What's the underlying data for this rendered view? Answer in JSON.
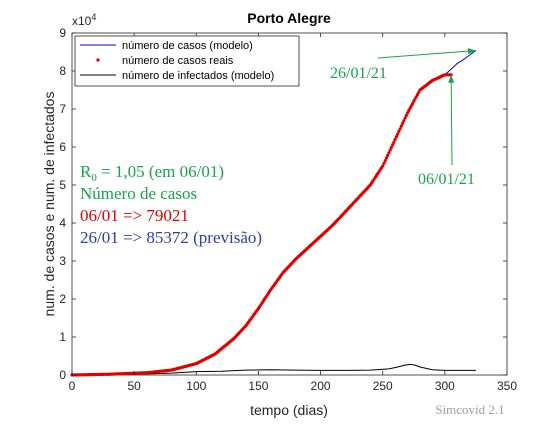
{
  "chart_data": {
    "type": "line",
    "title": "Porto Alegre",
    "xlabel": "tempo (dias)",
    "ylabel": "num. de casos e num. de infectados",
    "xlim": [
      0,
      350
    ],
    "ylim": [
      0,
      9
    ],
    "y_exponent_label": "x10",
    "y_exponent_power": "4",
    "x_ticks": [
      "0",
      "50",
      "100",
      "150",
      "200",
      "250",
      "300",
      "350"
    ],
    "y_ticks": [
      "0",
      "1",
      "2",
      "3",
      "4",
      "5",
      "6",
      "7",
      "8",
      "9"
    ],
    "grid": false,
    "legend_position": "top-left",
    "series": [
      {
        "name": "número de casos (modelo)",
        "color": "#0000cc",
        "style": "line",
        "x": [
          0,
          30,
          60,
          80,
          100,
          115,
          130,
          140,
          150,
          160,
          170,
          180,
          190,
          200,
          210,
          220,
          230,
          240,
          250,
          260,
          270,
          280,
          290,
          300,
          305,
          310,
          315,
          320,
          325
        ],
        "y": [
          0.0,
          0.02,
          0.06,
          0.13,
          0.3,
          0.55,
          0.95,
          1.3,
          1.75,
          2.25,
          2.7,
          3.05,
          3.35,
          3.65,
          3.95,
          4.3,
          4.65,
          5.0,
          5.5,
          6.2,
          6.9,
          7.5,
          7.75,
          7.9,
          8.05,
          8.2,
          8.3,
          8.42,
          8.54
        ]
      },
      {
        "name": "número de casos reais",
        "color": "#e00000",
        "style": "points",
        "x": [
          0,
          30,
          60,
          80,
          100,
          115,
          130,
          140,
          150,
          160,
          170,
          180,
          190,
          200,
          210,
          220,
          230,
          240,
          250,
          260,
          270,
          280,
          290,
          300,
          305
        ],
        "y": [
          0.0,
          0.02,
          0.06,
          0.13,
          0.3,
          0.55,
          0.95,
          1.3,
          1.75,
          2.25,
          2.7,
          3.05,
          3.35,
          3.65,
          3.95,
          4.3,
          4.65,
          5.0,
          5.5,
          6.2,
          6.9,
          7.5,
          7.75,
          7.9,
          7.9
        ]
      },
      {
        "name": "número de infectados (modelo)",
        "color": "#000000",
        "style": "line",
        "x": [
          0,
          50,
          80,
          100,
          120,
          140,
          160,
          180,
          200,
          220,
          240,
          255,
          262,
          268,
          272,
          276,
          280,
          290,
          300,
          310,
          325
        ],
        "y": [
          0.0,
          0.02,
          0.05,
          0.09,
          0.1,
          0.13,
          0.14,
          0.13,
          0.12,
          0.12,
          0.13,
          0.16,
          0.21,
          0.26,
          0.28,
          0.26,
          0.21,
          0.14,
          0.12,
          0.12,
          0.12
        ]
      }
    ],
    "annotations": [
      {
        "text": "26/01/21",
        "color": "#1aa34a",
        "arrow_to": [
          325,
          8.54
        ]
      },
      {
        "text": "06/01/21",
        "color": "#1aa34a",
        "arrow_to": [
          305,
          7.9
        ]
      }
    ],
    "text_box": [
      {
        "key": "r0",
        "color": "#1aa34a",
        "prefix": "R",
        "sub": "0",
        "suffix": " = 1,05 (em 06/01)"
      },
      {
        "key": "casos_label",
        "color": "#1aa34a",
        "text": "Número de casos"
      },
      {
        "key": "casos_0601",
        "color": "#e00000",
        "text": "06/01 => 79021"
      },
      {
        "key": "casos_2601",
        "color": "#2d3ea8",
        "text": "26/01 => 85372 (previsão)"
      }
    ]
  },
  "watermark": "Simcovid 2.1"
}
